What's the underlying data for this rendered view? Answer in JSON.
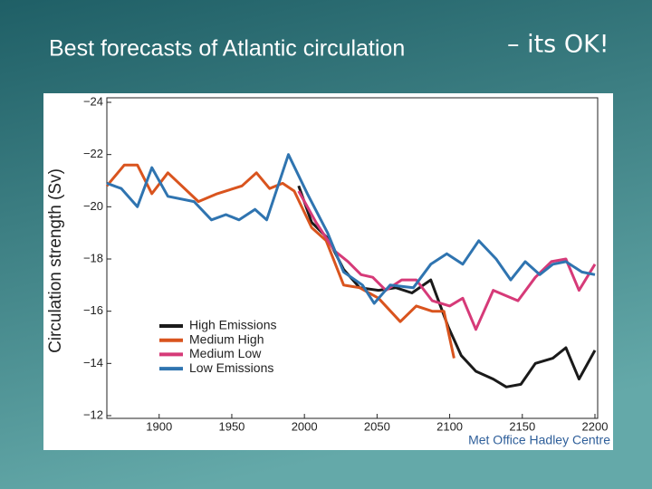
{
  "slide": {
    "title": "Best forecasts of Atlantic circulation",
    "remark": "– its OK!"
  },
  "chart_data": {
    "type": "line",
    "ylabel": "Circulation strength (Sv)",
    "credit": "Met Office Hadley Centre",
    "xlim": [
      1864,
      2200
    ],
    "xticks": [
      1900,
      1950,
      2000,
      2050,
      2100,
      2150,
      2200
    ],
    "ylim": [
      -12,
      -24
    ],
    "yticks": [
      {
        "value": -24,
        "label": "−24"
      },
      {
        "value": -22,
        "label": "−22"
      },
      {
        "value": -20,
        "label": "−20"
      },
      {
        "value": -18,
        "label": "−18"
      },
      {
        "value": -16,
        "label": "−16"
      },
      {
        "value": -14,
        "label": "−14"
      },
      {
        "value": -12,
        "label": "−12"
      }
    ],
    "grid": false,
    "legend": "lower-left",
    "series": [
      {
        "name": "High Emissions",
        "color": "#1a1a1a",
        "x": [
          1996,
          2005,
          2016,
          2027,
          2038,
          2051,
          2063,
          2074,
          2087,
          2099,
          2108,
          2118,
          2130,
          2139,
          2149,
          2159,
          2171,
          2180,
          2189,
          2200
        ],
        "values": [
          -20.8,
          -19.4,
          -18.8,
          -17.6,
          -16.9,
          -16.8,
          -16.9,
          -16.7,
          -17.2,
          -15.4,
          -14.3,
          -13.7,
          -13.4,
          -13.1,
          -13.2,
          -14.0,
          -14.2,
          -14.6,
          -13.4,
          -14.5
        ]
      },
      {
        "name": "Medium High",
        "color": "#d9541e",
        "x": [
          1864,
          1876,
          1885,
          1895,
          1906,
          1927,
          1940,
          1957,
          1967,
          1976,
          1985,
          1993,
          2005,
          2015,
          2027,
          2038,
          2051,
          2066,
          2077,
          2088,
          2096,
          2103
        ],
        "values": [
          -20.8,
          -21.6,
          -21.6,
          -20.5,
          -21.3,
          -20.2,
          -20.5,
          -20.8,
          -21.3,
          -20.7,
          -20.9,
          -20.6,
          -19.2,
          -18.7,
          -17.0,
          -16.9,
          -16.5,
          -15.6,
          -16.2,
          -16.0,
          -16.0,
          -14.2
        ]
      },
      {
        "name": "Medium Low",
        "color": "#d63a78",
        "x": [
          1996,
          2008,
          2021,
          2030,
          2039,
          2047,
          2056,
          2067,
          2077,
          2088,
          2100,
          2109,
          2118,
          2130,
          2147,
          2159,
          2170,
          2180,
          2189,
          2200
        ],
        "values": [
          -20.6,
          -19.4,
          -18.3,
          -17.9,
          -17.4,
          -17.3,
          -16.8,
          -17.2,
          -17.2,
          -16.4,
          -16.2,
          -16.5,
          -15.3,
          -16.8,
          -16.4,
          -17.3,
          -17.9,
          -18.0,
          -16.8,
          -17.8
        ]
      },
      {
        "name": "Low Emissions",
        "color": "#2f74b0",
        "x": [
          1864,
          1874,
          1885,
          1895,
          1906,
          1924,
          1936,
          1946,
          1955,
          1966,
          1974,
          1989,
          2002,
          2016,
          2027,
          2040,
          2048,
          2059,
          2075,
          2087,
          2098,
          2109,
          2120,
          2132,
          2142,
          2152,
          2162,
          2171,
          2180,
          2191,
          2200
        ],
        "values": [
          -20.9,
          -20.7,
          -20.0,
          -21.5,
          -20.4,
          -20.2,
          -19.5,
          -19.7,
          -19.5,
          -19.9,
          -19.5,
          -22.0,
          -20.5,
          -19.0,
          -17.5,
          -17.0,
          -16.3,
          -17.0,
          -16.9,
          -17.8,
          -18.2,
          -17.8,
          -18.7,
          -18.0,
          -17.2,
          -17.9,
          -17.4,
          -17.8,
          -17.9,
          -17.5,
          -17.4
        ]
      }
    ]
  }
}
